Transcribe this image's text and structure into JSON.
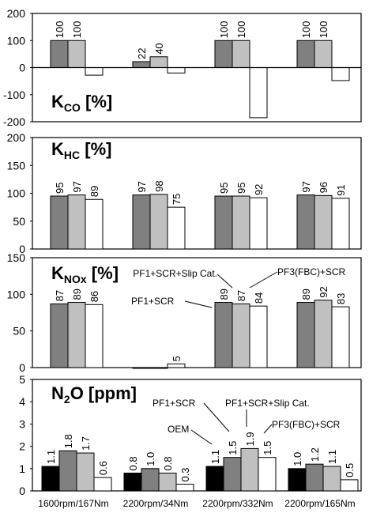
{
  "chart_data": [
    {
      "type": "bar",
      "title": "K_CO [%]",
      "title_main": "K",
      "title_sub": "CO",
      "title_suffix": " [%]",
      "ylim": [
        -200,
        200
      ],
      "yticks": [
        -200,
        -100,
        0,
        100,
        200
      ],
      "data_labels": true,
      "categories": [
        "1600rpm/167Nm",
        "2200rpm/34Nm",
        "2200rpm/332Nm",
        "2200rpm/165Nm"
      ],
      "series": [
        {
          "values": [
            100,
            22,
            100,
            100
          ],
          "labels": [
            "100",
            "22",
            "100",
            "100"
          ],
          "color": "#808080"
        },
        {
          "values": [
            100,
            40,
            100,
            100
          ],
          "labels": [
            "100",
            "40",
            "100",
            "100"
          ],
          "color": "#c0c0c0"
        },
        {
          "values": [
            -28,
            -20,
            -185,
            -48
          ],
          "labels": [
            "",
            "",
            "",
            ""
          ],
          "color": "#ffffff"
        }
      ]
    },
    {
      "type": "bar",
      "title": "K_HC [%]",
      "title_main": "K",
      "title_sub": "HC",
      "title_suffix": " [%]",
      "ylim": [
        0,
        200
      ],
      "yticks": [
        0,
        50,
        100,
        150,
        200
      ],
      "data_labels": true,
      "categories": [
        "1600rpm/167Nm",
        "2200rpm/34Nm",
        "2200rpm/332Nm",
        "2200rpm/165Nm"
      ],
      "series": [
        {
          "values": [
            95,
            97,
            95,
            97
          ],
          "labels": [
            "95",
            "97",
            "95",
            "97"
          ],
          "color": "#808080"
        },
        {
          "values": [
            97,
            98,
            95,
            96
          ],
          "labels": [
            "97",
            "98",
            "95",
            "96"
          ],
          "color": "#c0c0c0"
        },
        {
          "values": [
            89,
            75,
            92,
            91
          ],
          "labels": [
            "89",
            "75",
            "92",
            "91"
          ],
          "color": "#ffffff"
        }
      ]
    },
    {
      "type": "bar",
      "title": "K_NOx [%]",
      "title_main": "K",
      "title_sub": "NOx",
      "title_suffix": " [%]",
      "ylim": [
        0,
        150
      ],
      "yticks": [
        0,
        50,
        100,
        150
      ],
      "data_labels": true,
      "categories": [
        "1600rpm/167Nm",
        "2200rpm/34Nm",
        "2200rpm/332Nm",
        "2200rpm/165Nm"
      ],
      "series": [
        {
          "values": [
            87,
            -1,
            89,
            89
          ],
          "labels": [
            "87",
            "",
            "89",
            "89"
          ],
          "color": "#808080"
        },
        {
          "values": [
            89,
            -1,
            87,
            92
          ],
          "labels": [
            "89",
            "",
            "87",
            "92"
          ],
          "color": "#c0c0c0"
        },
        {
          "values": [
            86,
            5,
            84,
            83
          ],
          "labels": [
            "86",
            "5",
            "84",
            "83"
          ],
          "color": "#ffffff"
        }
      ],
      "annotations": [
        "PF1+SCR+Slip Cat.",
        "PF3(FBC)+SCR",
        "PF1+SCR"
      ]
    },
    {
      "type": "bar",
      "title": "N2O [ppm]",
      "title_main": "N",
      "title_sub": "2",
      "title_suffix": "O [ppm]",
      "ylim": [
        0,
        5
      ],
      "yticks": [
        0,
        1,
        2,
        3,
        4,
        5
      ],
      "data_labels": true,
      "categories": [
        "1600rpm/167Nm",
        "2200rpm/34Nm",
        "2200rpm/332Nm",
        "2200rpm/165Nm"
      ],
      "series": [
        {
          "values": [
            1.1,
            0.8,
            1.1,
            1.0
          ],
          "labels": [
            "1.1",
            "0.8",
            "1.1",
            "1.0"
          ],
          "color": "#000000"
        },
        {
          "values": [
            1.8,
            1.0,
            1.5,
            1.2
          ],
          "labels": [
            "1.8",
            "1.0",
            "1.5",
            "1.2"
          ],
          "color": "#808080"
        },
        {
          "values": [
            1.7,
            0.8,
            1.9,
            1.1
          ],
          "labels": [
            "1.7",
            "0.8",
            "1.9",
            "1.1"
          ],
          "color": "#c0c0c0"
        },
        {
          "values": [
            0.6,
            0.3,
            1.5,
            0.5
          ],
          "labels": [
            "0.6",
            "0.3",
            "1.5",
            "0.5"
          ],
          "color": "#ffffff"
        }
      ],
      "annotations": [
        "PF1+SCR",
        "PF1+SCR+Slip Cat.",
        "OEM",
        "PF3(FBC)+SCR"
      ]
    }
  ]
}
